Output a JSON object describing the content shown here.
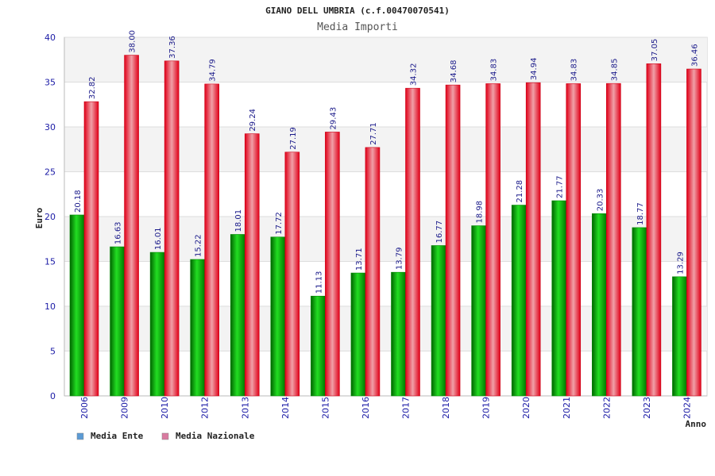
{
  "chart_data": {
    "type": "bar",
    "title": "GIANO DELL UMBRIA (c.f.00470070541)",
    "subtitle": "Media Importi",
    "ylabel": "Euro",
    "xlabel": "Anno",
    "ylim": [
      0,
      40
    ],
    "yticks": [
      0,
      5,
      10,
      15,
      20,
      25,
      30,
      35,
      40
    ],
    "grid": true,
    "legend_position": "bottom-left",
    "categories": [
      "2006",
      "2009",
      "2010",
      "2012",
      "2013",
      "2014",
      "2015",
      "2016",
      "2017",
      "2018",
      "2019",
      "2020",
      "2021",
      "2022",
      "2023",
      "2024"
    ],
    "series": [
      {
        "name": "Media Ente",
        "color": "#00aa00",
        "legend_color": "#5b9bd5",
        "values": [
          20.18,
          16.63,
          16.01,
          15.22,
          18.01,
          17.72,
          11.13,
          13.71,
          13.79,
          16.77,
          18.98,
          21.28,
          21.77,
          20.33,
          18.77,
          13.29
        ],
        "labels": [
          "20.18",
          "16.63",
          "16.01",
          "15.22",
          "18.01",
          "17.72",
          "11.13",
          "13.71",
          "13.79",
          "16.77",
          "18.98",
          "21.28",
          "21.77",
          "20.33",
          "18.77",
          "13.29"
        ]
      },
      {
        "name": "Media Nazionale",
        "color": "#e8102a",
        "legend_color": "#d97aa0",
        "values": [
          32.82,
          38.0,
          37.36,
          34.79,
          29.24,
          27.19,
          29.43,
          27.71,
          34.32,
          34.68,
          34.83,
          34.94,
          34.83,
          34.85,
          37.05,
          36.46
        ],
        "labels": [
          "32.82",
          "38.00",
          "37.36",
          "34.79",
          "29.24",
          "27.19",
          "29.43",
          "27.71",
          "34.32",
          "34.68",
          "34.83",
          "34.94",
          "34.83",
          "34.85",
          "37.05",
          "36.46"
        ]
      }
    ]
  }
}
